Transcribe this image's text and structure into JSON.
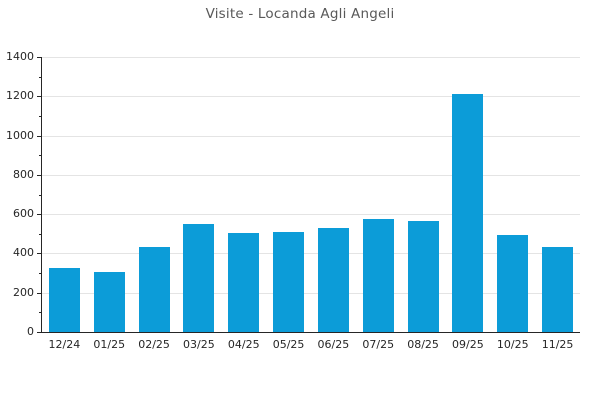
{
  "chart_data": {
    "type": "bar",
    "title": "Visite - Locanda Agli Angeli",
    "categories": [
      "12/24",
      "01/25",
      "02/25",
      "03/25",
      "04/25",
      "05/25",
      "06/25",
      "07/25",
      "08/25",
      "09/25",
      "10/25",
      "11/25"
    ],
    "values": [
      325,
      305,
      435,
      550,
      505,
      510,
      530,
      575,
      565,
      1210,
      495,
      435
    ],
    "xlabel": "",
    "ylabel": "",
    "ylim": [
      0,
      1400
    ],
    "yticks": [
      0,
      200,
      400,
      600,
      800,
      1000,
      1200,
      1400
    ],
    "minor_ytick_step": 100,
    "grid": "horizontal-major",
    "legend_position": "none",
    "colors": {
      "bar": "#0c9cd8",
      "grid": "#e4e4e4",
      "axis": "#262626",
      "tick_labels": "#262626",
      "title": "#595959"
    }
  }
}
